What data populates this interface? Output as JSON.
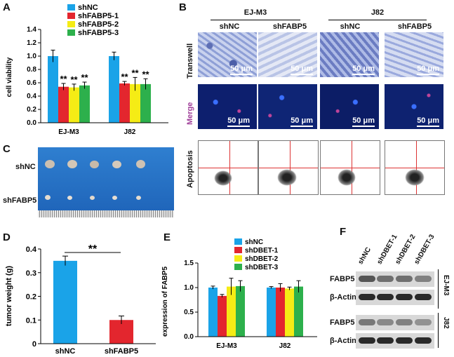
{
  "panels": {
    "A": "A",
    "B": "B",
    "C": "C",
    "D": "D",
    "E": "E",
    "F": "F"
  },
  "panelA": {
    "chart_data": {
      "type": "bar",
      "categories": [
        "EJ-M3",
        "J82"
      ],
      "series": [
        {
          "name": "shNC",
          "values": [
            1.0,
            1.0
          ],
          "errors": [
            0.09,
            0.06
          ]
        },
        {
          "name": "shFABP5-1",
          "values": [
            0.54,
            0.59
          ],
          "errors": [
            0.05,
            0.03
          ]
        },
        {
          "name": "shFABP5-2",
          "values": [
            0.53,
            0.58
          ],
          "errors": [
            0.05,
            0.1
          ]
        },
        {
          "name": "shFABP5-3",
          "values": [
            0.56,
            0.58
          ],
          "errors": [
            0.05,
            0.08
          ]
        }
      ],
      "colors": [
        "#1aa3e8",
        "#e3262e",
        "#f5ec15",
        "#2db04c"
      ],
      "ylabel": "cell viability",
      "xlabel": "",
      "ylim": [
        0,
        1.4
      ],
      "yticks": [
        "0.0",
        "0.2",
        "0.4",
        "0.6",
        "0.8",
        "1.0",
        "1.2",
        "1.4"
      ],
      "significance": "**",
      "legend_position": "top"
    }
  },
  "panelB": {
    "groups": [
      "EJ-M3",
      "J82"
    ],
    "columns": [
      "shNC",
      "shFABP5",
      "shNC",
      "shFABP5"
    ],
    "rows": [
      "Transwell",
      "Merge",
      "Apoptosis"
    ],
    "scale_bar": "50 μm"
  },
  "panelC": {
    "rows": [
      "shNC",
      "shFABP5"
    ]
  },
  "panelD": {
    "chart_data": {
      "type": "bar",
      "categories": [
        "shNC",
        "shFABP5"
      ],
      "values": [
        0.35,
        0.1
      ],
      "errors": [
        0.02,
        0.017
      ],
      "colors": [
        "#1aa3e8",
        "#e3262e"
      ],
      "ylabel": "tumor weight (g)",
      "ylim": [
        0,
        0.4
      ],
      "yticks": [
        "0",
        "0.1",
        "0.2",
        "0.3",
        "0.4"
      ],
      "significance": "**"
    }
  },
  "panelE": {
    "chart_data": {
      "type": "bar",
      "categories": [
        "EJ-M3",
        "J82"
      ],
      "series": [
        {
          "name": "shNC",
          "values": [
            1.0,
            1.0
          ],
          "errors": [
            0.03,
            0.02
          ]
        },
        {
          "name": "shDBET-1",
          "values": [
            0.83,
            1.0
          ],
          "errors": [
            0.03,
            0.08
          ]
        },
        {
          "name": "shDBET-2",
          "values": [
            1.02,
            0.98
          ],
          "errors": [
            0.17,
            0.03
          ]
        },
        {
          "name": "shDBET-3",
          "values": [
            1.03,
            1.02
          ],
          "errors": [
            0.11,
            0.12
          ]
        }
      ],
      "colors": [
        "#1aa3e8",
        "#e3262e",
        "#f5ec15",
        "#2db04c"
      ],
      "ylabel": "expression of FABP5",
      "ylim": [
        0,
        1.5
      ],
      "yticks": [
        "0.0",
        "0.5",
        "1.0",
        "1.5"
      ],
      "legend_position": "top"
    }
  },
  "panelF": {
    "lanes": [
      "shNC",
      "shDBET-1",
      "shDBET-2",
      "shDBET-3"
    ],
    "bands": [
      "FABP5",
      "β-Actin",
      "FABP5",
      "β-Actin"
    ],
    "cell_lines": [
      "EJ-M3",
      "J82"
    ]
  }
}
